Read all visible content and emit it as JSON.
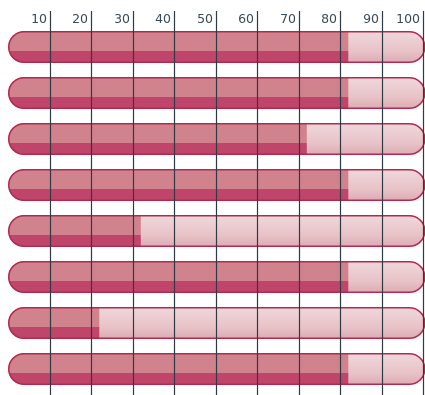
{
  "chart_data": {
    "type": "bar",
    "orientation": "horizontal",
    "xlim": [
      0,
      100
    ],
    "ticks": [
      "10",
      "20",
      "30",
      "40",
      "50",
      "60",
      "70",
      "80",
      "90",
      "100"
    ],
    "values": [
      82,
      82,
      72,
      82,
      32,
      82,
      22,
      82
    ],
    "grid": true,
    "colors": {
      "fill": "#c0456b",
      "fill_top": "#d0838d",
      "remainder": "#e8c3c8",
      "remainder_top": "#efd8dc",
      "outline": "#b4284f",
      "tick_text": "#3a4a57",
      "grid": "#2f3a45"
    }
  }
}
